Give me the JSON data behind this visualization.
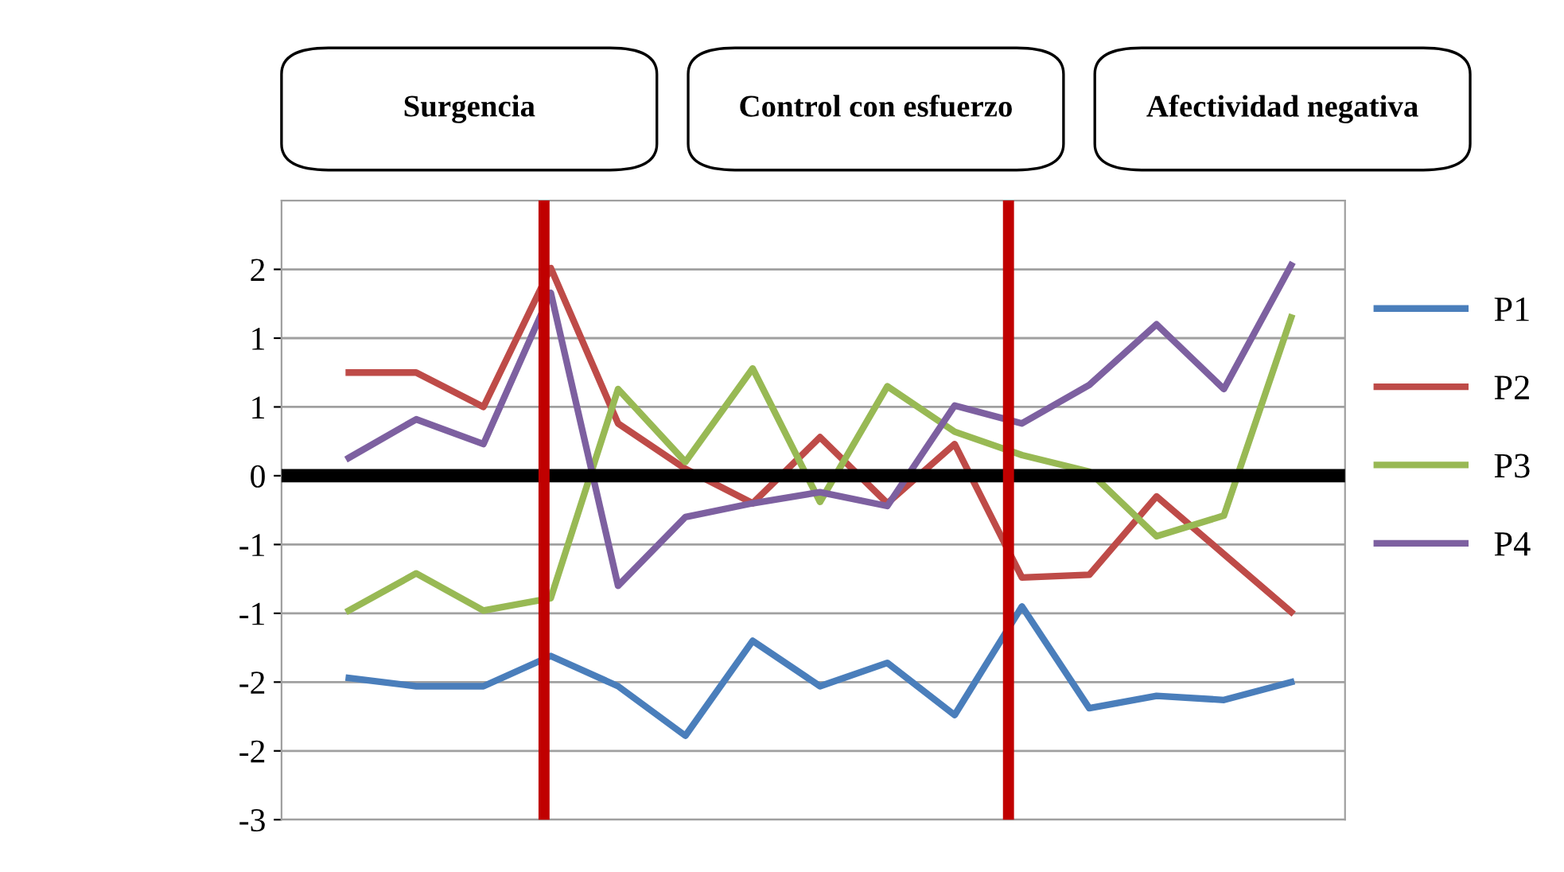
{
  "chart_data": {
    "type": "line",
    "categories": [
      null,
      null,
      null,
      null,
      null,
      null,
      null,
      null,
      null,
      null,
      null,
      null,
      null,
      null,
      null
    ],
    "series": [
      {
        "name": "P1",
        "color": "#4a7ebb",
        "values": [
          -1.47,
          -1.53,
          -1.53,
          -1.31,
          -1.53,
          -1.89,
          -1.2,
          -1.53,
          -1.36,
          -1.74,
          -0.95,
          -1.69,
          -1.6,
          -1.63,
          -1.5
        ]
      },
      {
        "name": "P2",
        "color": "#be4b48",
        "values": [
          0.75,
          0.75,
          0.5,
          1.51,
          0.38,
          0.05,
          -0.2,
          0.28,
          -0.2,
          0.23,
          -0.74,
          -0.72,
          -0.15,
          -0.57,
          -0.99
        ]
      },
      {
        "name": "P3",
        "color": "#98b954",
        "values": [
          -0.98,
          -0.71,
          -0.98,
          -0.89,
          0.63,
          0.1,
          0.78,
          -0.19,
          0.65,
          0.32,
          0.15,
          0.03,
          -0.44,
          -0.29,
          1.15
        ]
      },
      {
        "name": "P4",
        "color": "#7d60a0",
        "values": [
          0.13,
          0.41,
          0.23,
          1.33,
          -0.8,
          -0.3,
          -0.2,
          -0.12,
          -0.22,
          0.51,
          0.38,
          0.66,
          1.1,
          0.63,
          1.53
        ]
      }
    ],
    "ylim": [
      -2.5,
      2
    ],
    "yticks": [
      {
        "value": -2.5,
        "label": "-3"
      },
      {
        "value": -2,
        "label": "-2"
      },
      {
        "value": -1.5,
        "label": "-2"
      },
      {
        "value": -1,
        "label": "-1"
      },
      {
        "value": -0.5,
        "label": "-1"
      },
      0,
      {
        "value": 0.5,
        "label": "1"
      },
      {
        "value": 1,
        "label": "1"
      },
      {
        "value": 1.5,
        "label": "2"
      }
    ],
    "ref_lines": [
      {
        "axis": "y",
        "value": 0,
        "color": "#000000"
      }
    ],
    "annotations": [
      "Surgencia",
      "Control con esfuerzo",
      "Afectividad negativa"
    ],
    "grid": "y",
    "legend": "right",
    "marker": "none",
    "line_style": "solid"
  }
}
